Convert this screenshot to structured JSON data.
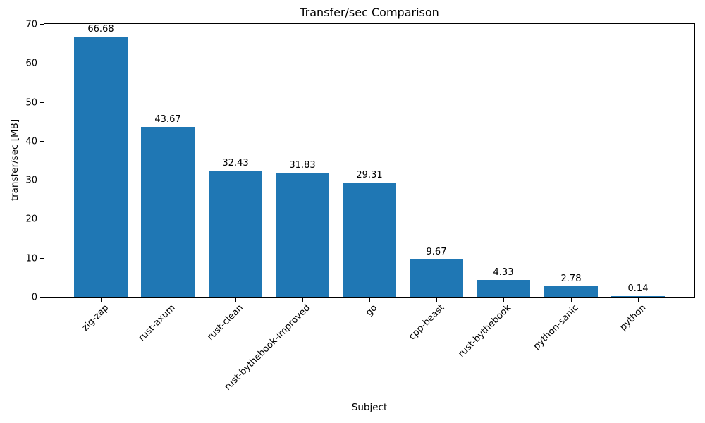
{
  "chart_data": {
    "type": "bar",
    "title": "Transfer/sec Comparison",
    "xlabel": "Subject",
    "ylabel": "transfer/sec [MB]",
    "categories": [
      "zig-zap",
      "rust-axum",
      "rust-clean",
      "rust-bythebook-improved",
      "go",
      "cpp-beast",
      "rust-bythebook",
      "python-sanic",
      "python"
    ],
    "values": [
      66.68,
      43.67,
      32.43,
      31.83,
      29.31,
      9.67,
      4.33,
      2.78,
      0.14
    ],
    "bar_labels": [
      "66.68",
      "43.67",
      "32.43",
      "31.83",
      "29.31",
      "9.67",
      "4.33",
      "2.78",
      "0.14"
    ],
    "ylim": [
      0,
      70
    ],
    "yticks": [
      0,
      10,
      20,
      30,
      40,
      50,
      60,
      70
    ],
    "bar_color": "#1f77b4",
    "grid": false,
    "legend": "none",
    "x_tick_rotation_deg": 45
  }
}
